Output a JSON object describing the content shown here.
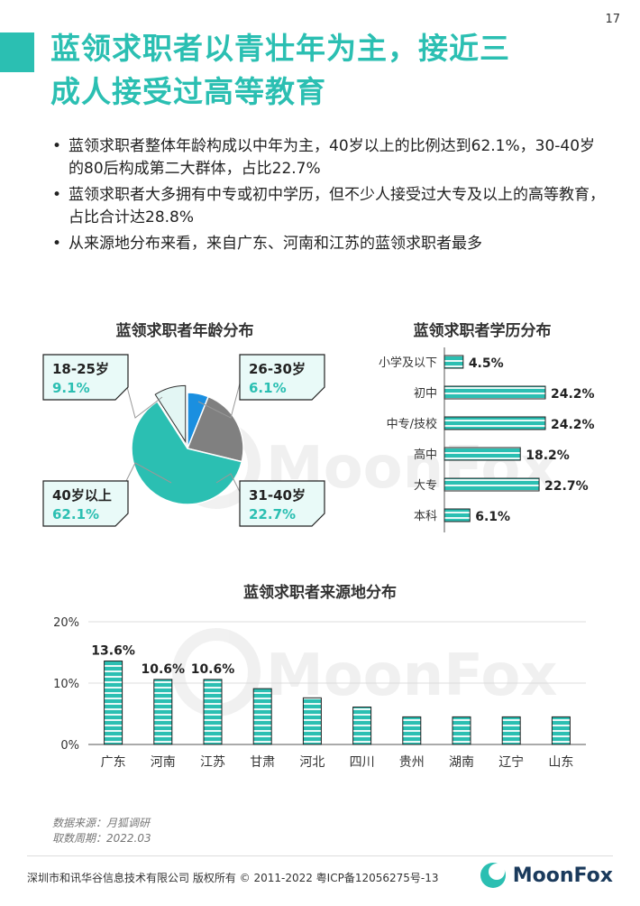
{
  "page_number": "17",
  "title_line1": "蓝领求职者以青壮年为主，接近三",
  "title_line2": "成人接受过高等教育",
  "bullets": [
    "蓝领求职者整体年龄构成以中年为主，40岁以上的比例达到62.1%，30-40岁的80后构成第二大群体，占比22.7%",
    "蓝领求职者大多拥有中专或初中学历，但不少人接受过大专及以上的高等教育，占比合计达28.8%",
    "从来源地分布来看，来自广东、河南和江苏的蓝领求职者最多"
  ],
  "watermark": "MoonFox",
  "colors": {
    "accent": "#2bbfb2",
    "blue": "#1a8fe0",
    "gray": "#808080",
    "light": "#e3f6f4"
  },
  "chart_data": [
    {
      "type": "pie",
      "title": "蓝领求职者年龄分布",
      "categories": [
        "40岁以上",
        "31-40岁",
        "26-30岁",
        "18-25岁"
      ],
      "values": [
        62.1,
        22.7,
        6.1,
        9.1
      ],
      "value_labels": [
        "62.1%",
        "22.7%",
        "6.1%",
        "9.1%"
      ]
    },
    {
      "type": "bar",
      "orientation": "horizontal",
      "title": "蓝领求职者学历分布",
      "categories": [
        "小学及以下",
        "初中",
        "中专/技校",
        "高中",
        "大专",
        "本科"
      ],
      "values": [
        4.5,
        24.2,
        24.2,
        18.2,
        22.7,
        6.1
      ],
      "value_labels": [
        "4.5%",
        "24.2%",
        "24.2%",
        "18.2%",
        "22.7%",
        "6.1%"
      ]
    },
    {
      "type": "bar",
      "title": "蓝领求职者来源地分布",
      "categories": [
        "广东",
        "河南",
        "江苏",
        "甘肃",
        "河北",
        "四川",
        "贵州",
        "湖南",
        "辽宁",
        "山东"
      ],
      "values": [
        13.6,
        10.6,
        10.6,
        9.1,
        7.6,
        6.1,
        4.5,
        4.5,
        4.5,
        4.5
      ],
      "data_labels": [
        "13.6%",
        "10.6%",
        "10.6%",
        "",
        "",
        "",
        "",
        "",
        "",
        ""
      ],
      "yticks": [
        "0%",
        "10%",
        "20%"
      ],
      "ylim": [
        0,
        20
      ]
    }
  ],
  "source_line1": "数据来源：月狐调研",
  "source_line2": "取数周期：2022.03",
  "footer": "深圳市和讯华谷信息技术有限公司 版权所有 © 2011-2022 粤ICP备12056275号-13",
  "logo_text": "MoonFox"
}
